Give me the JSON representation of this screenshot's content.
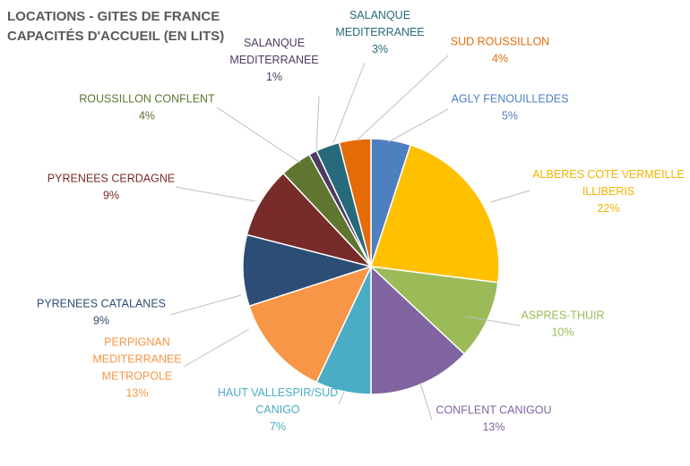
{
  "chart_data": {
    "type": "pie",
    "title_lines": [
      "LOCATIONS - GITES DE FRANCE",
      "CAPACITÉS D'ACCUEIL (EN LITS)"
    ],
    "slices": [
      {
        "label": [
          "AGLY FENOUILLEDES"
        ],
        "pct": "5%",
        "value": 5,
        "color": "#4e7fc1",
        "text_color": "#4e7fc1"
      },
      {
        "label": [
          "ALBERES COTE VERMEILLE",
          "ILLIBERIS"
        ],
        "pct": "22%",
        "value": 22,
        "color": "#ffc000",
        "text_color": "#f0b400"
      },
      {
        "label": [
          "ASPRES-THUIR"
        ],
        "pct": "10%",
        "value": 10,
        "color": "#9bbb59",
        "text_color": "#9bbb59"
      },
      {
        "label": [
          "CONFLENT CANIGOU"
        ],
        "pct": "13%",
        "value": 13,
        "color": "#8064a2",
        "text_color": "#8064a2"
      },
      {
        "label": [
          "HAUT VALLESPIR/SUD",
          "CANIGO"
        ],
        "pct": "7%",
        "value": 7,
        "color": "#4bacc6",
        "text_color": "#4bacc6"
      },
      {
        "label": [
          "PERPIGNAN",
          "MEDITERRANEE",
          "METROPOLE"
        ],
        "pct": "13%",
        "value": 13,
        "color": "#f79646",
        "text_color": "#f79646"
      },
      {
        "label": [
          "PYRENEES CATALANES"
        ],
        "pct": "9%",
        "value": 9,
        "color": "#2c4d75",
        "text_color": "#2c4d75"
      },
      {
        "label": [
          "PYRENEES CERDAGNE"
        ],
        "pct": "9%",
        "value": 9,
        "color": "#772c2a",
        "text_color": "#772c2a"
      },
      {
        "label": [
          "ROUSSILLON CONFLENT"
        ],
        "pct": "4%",
        "value": 4,
        "color": "#5f7530",
        "text_color": "#5f7530"
      },
      {
        "label": [
          "SALANQUE",
          "MEDITERRANEE"
        ],
        "pct": "1%",
        "value": 1,
        "color": "#4d3b62",
        "text_color": "#4d3b62"
      },
      {
        "label": [
          "SALANQUE",
          "MEDITERRANEE"
        ],
        "pct": "3%",
        "value": 3,
        "color": "#276a7c",
        "text_color": "#276a7c"
      },
      {
        "label": [
          "SUD ROUSSILLON"
        ],
        "pct": "4%",
        "value": 4,
        "color": "#e36c09",
        "text_color": "#e36c09"
      }
    ]
  }
}
